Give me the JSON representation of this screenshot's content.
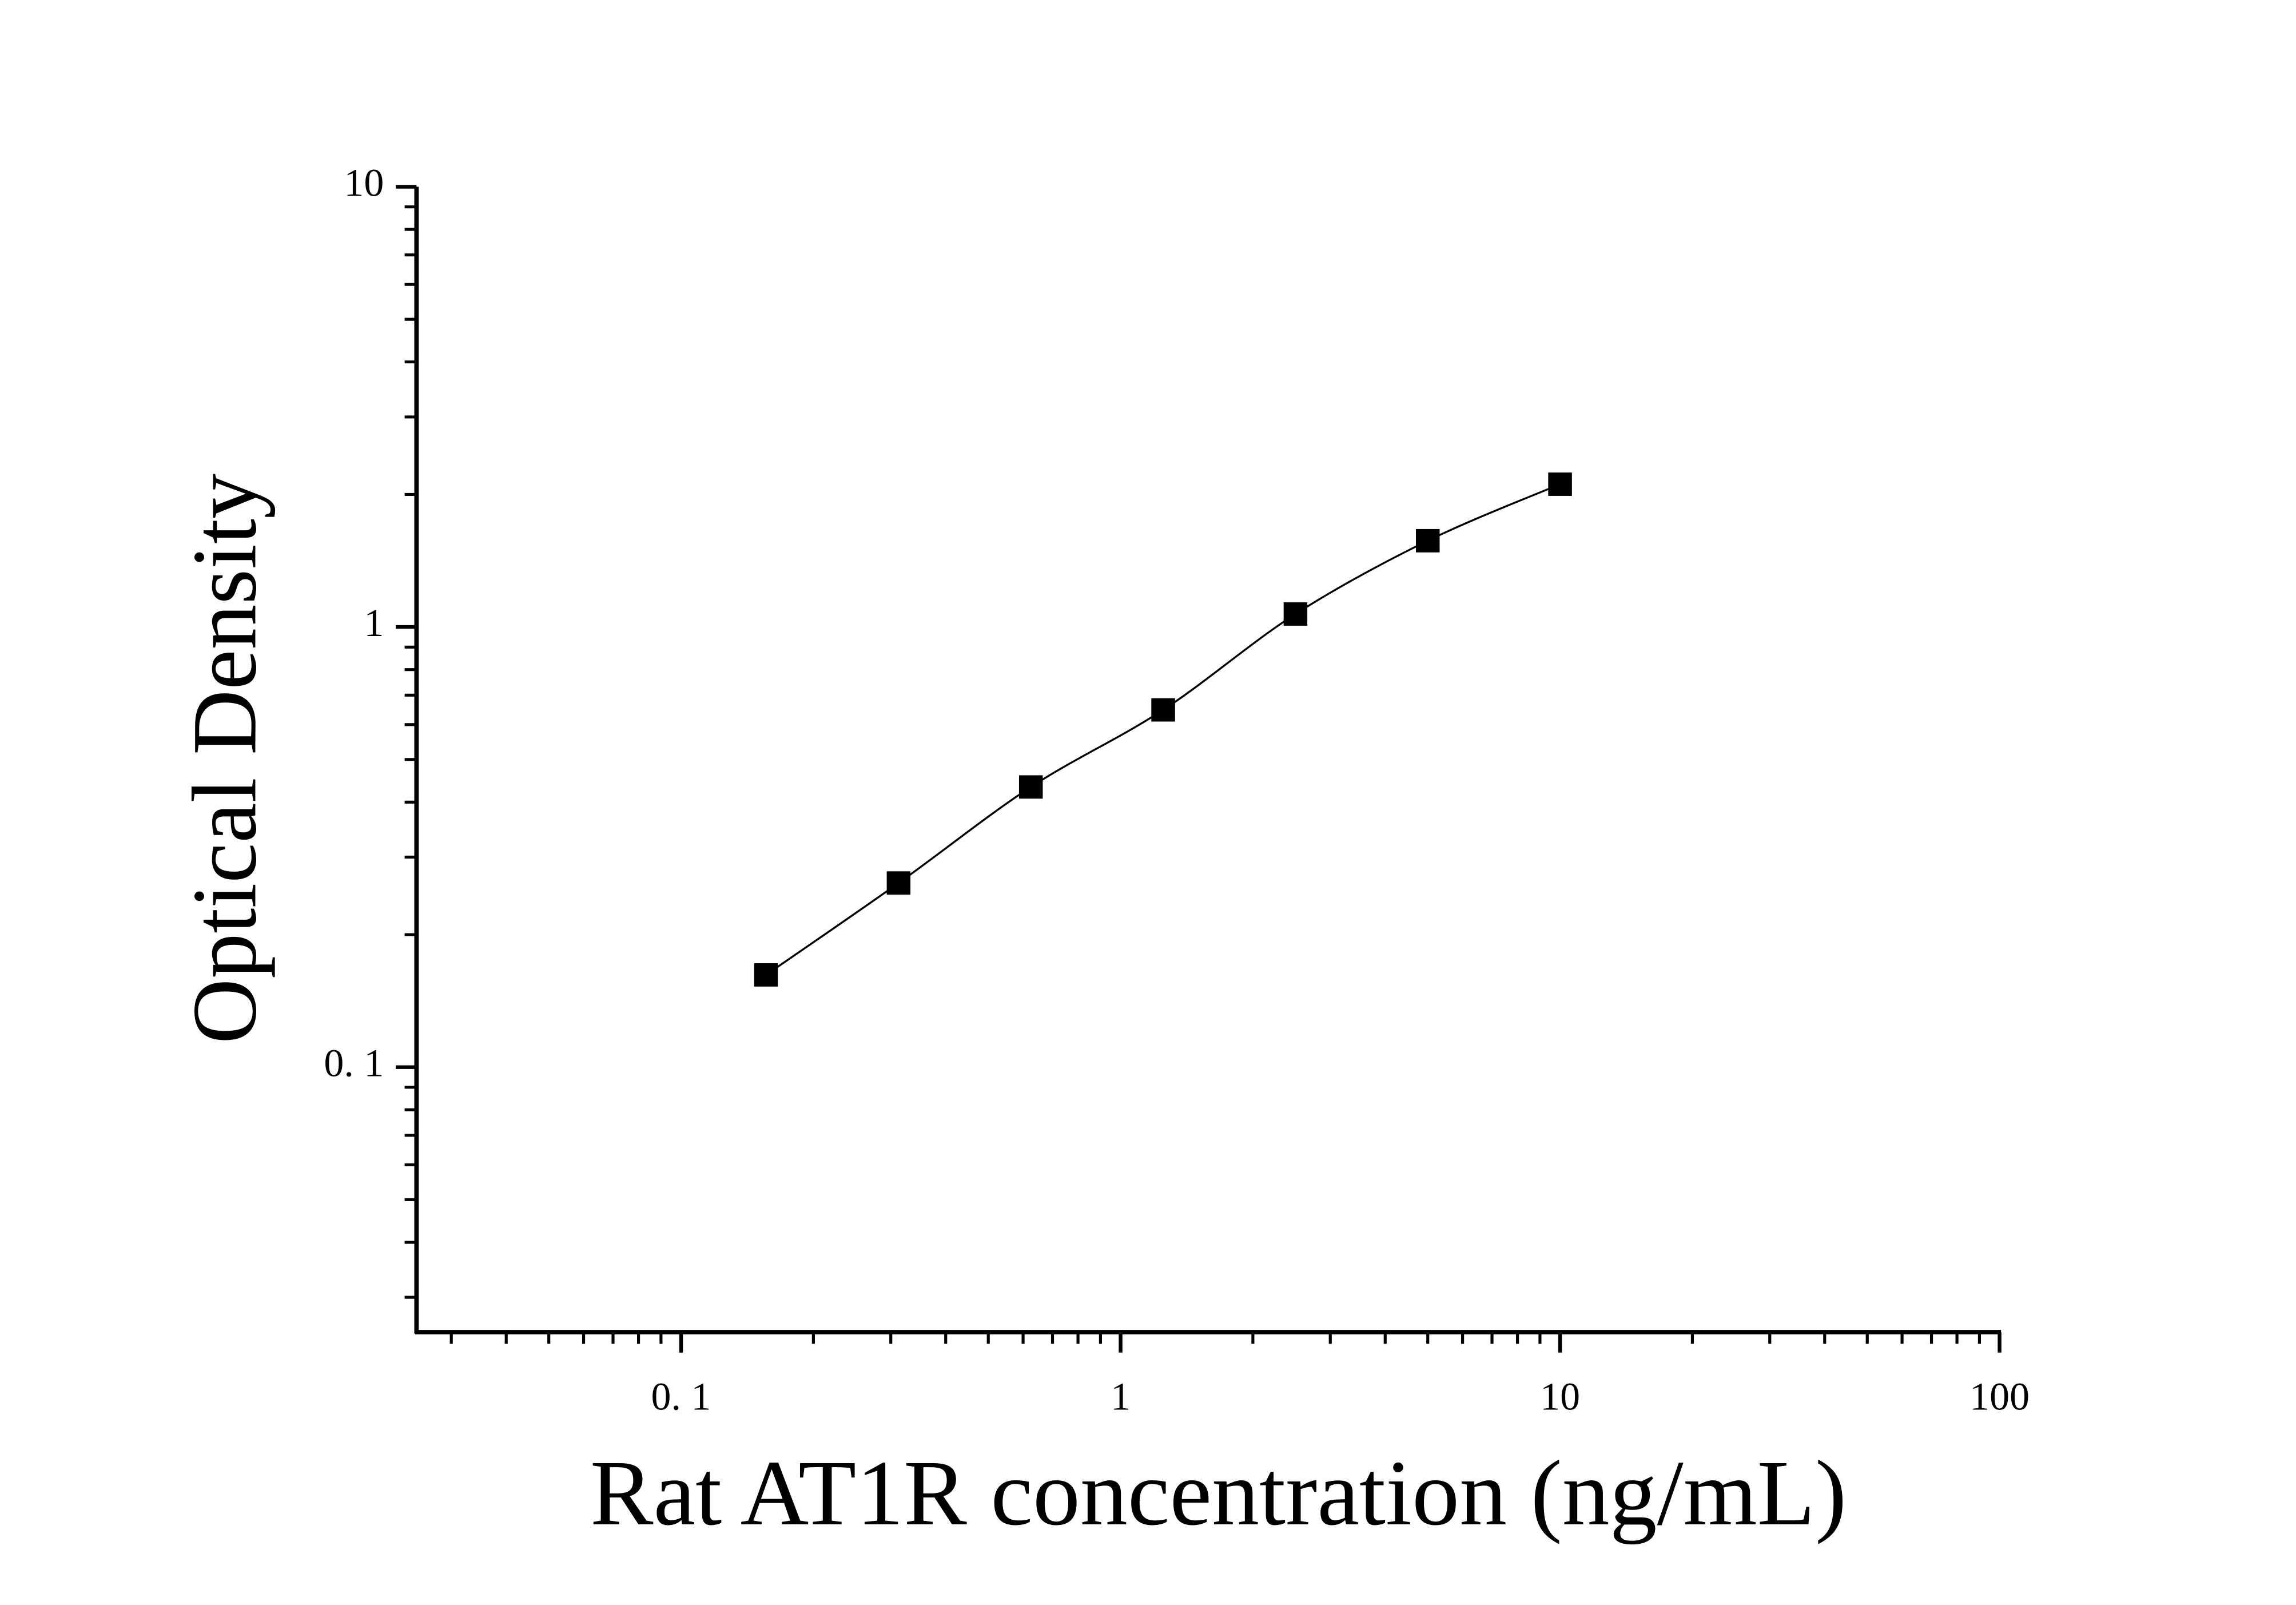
{
  "chart_data": {
    "type": "scatter",
    "x_label": "Rat AT1R concentration (ng/mL)",
    "y_label": "Optical Density",
    "x_log": true,
    "y_log": true,
    "xlim": [
      0.025,
      100
    ],
    "ylim": [
      0.025,
      10
    ],
    "xticks": [
      {
        "value": 0.1,
        "label": "0. 1"
      },
      1,
      10,
      100
    ],
    "yticks": [
      {
        "value": 0.1,
        "label": "0. 1"
      },
      1,
      10
    ],
    "xminorticks": [
      0.03,
      0.04,
      0.05,
      0.06,
      0.07,
      0.08,
      0.09,
      0.2,
      0.3,
      0.4,
      0.5,
      0.6,
      0.7,
      0.8,
      0.9,
      2,
      3,
      4,
      5,
      6,
      7,
      8,
      9,
      20,
      30,
      40,
      50,
      60,
      70,
      80,
      90
    ],
    "yminorticks": [
      0.03,
      0.04,
      0.05,
      0.06,
      0.07,
      0.08,
      0.09,
      0.2,
      0.3,
      0.4,
      0.5,
      0.6,
      0.7,
      0.8,
      0.9,
      2,
      3,
      4,
      5,
      6,
      7,
      8,
      9
    ],
    "fit_curve": true,
    "series": [
      {
        "color": "#000000",
        "x": [
          0.156,
          0.3125,
          0.625,
          1.25,
          2.5,
          5,
          10
        ],
        "values": [
          0.162,
          0.262,
          0.433,
          0.648,
          1.07,
          1.57,
          2.11
        ]
      }
    ]
  }
}
